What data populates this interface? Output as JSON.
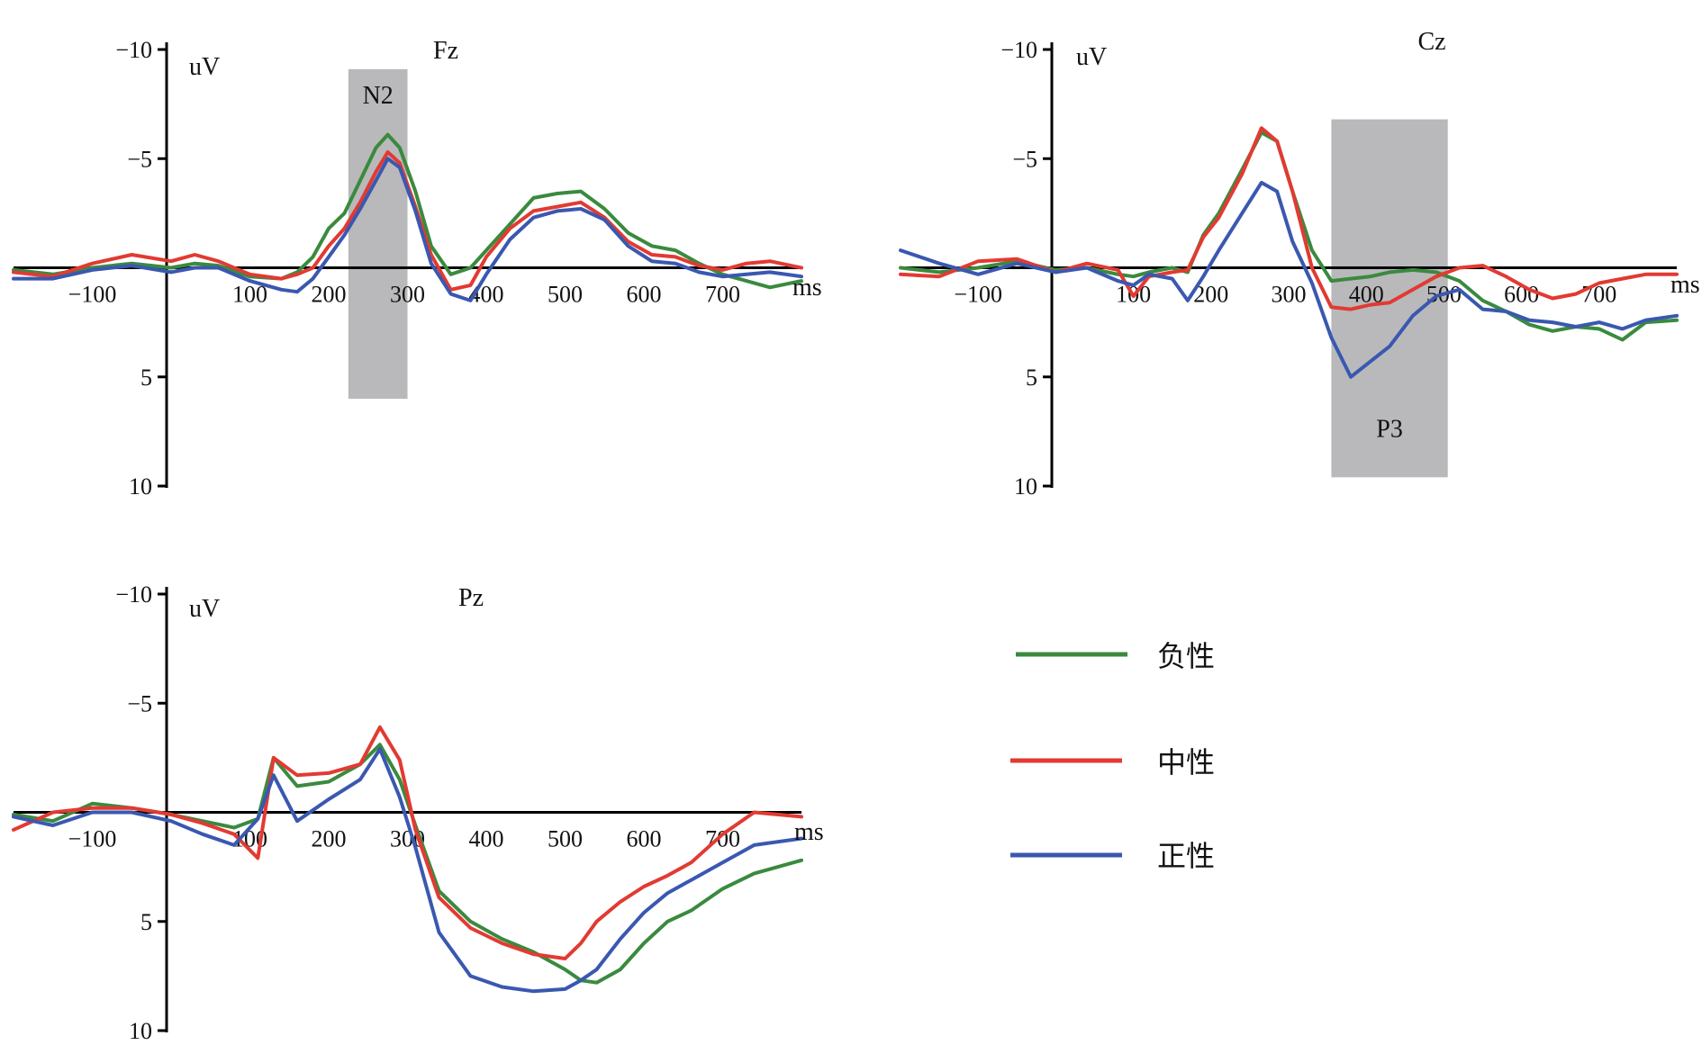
{
  "legend": {
    "items": [
      {
        "label": "负性",
        "color": "#3a8a3e"
      },
      {
        "label": "中性",
        "color": "#e23a32"
      },
      {
        "label": "正性",
        "color": "#3a58b0"
      }
    ]
  },
  "chart_data": [
    {
      "type": "line",
      "title": "Fz",
      "ylabel": "uV",
      "xlabel": "ms",
      "xlim": [
        -200,
        800
      ],
      "ylim": [
        -10,
        10
      ],
      "y_inverted": true,
      "x_ticks": [
        "−100",
        "100",
        "200",
        "300",
        "400",
        "500",
        "600",
        "700"
      ],
      "x_tick_values": [
        -100,
        100,
        200,
        300,
        400,
        500,
        600,
        700
      ],
      "y_ticks": [
        "−10",
        "−5",
        "5",
        "10"
      ],
      "y_tick_values": [
        -10,
        -5,
        5,
        10
      ],
      "shaded_window": {
        "label": "N2",
        "x_start": 225,
        "x_end": 300,
        "y_top": -9.1,
        "y_bottom": 6.0
      },
      "series": [
        {
          "name": "负性",
          "color": "#3a8a3e",
          "x": [
            -200,
            -150,
            -100,
            -50,
            0,
            30,
            60,
            100,
            140,
            160,
            180,
            200,
            220,
            240,
            260,
            275,
            290,
            310,
            330,
            355,
            380,
            400,
            430,
            460,
            490,
            520,
            550,
            580,
            610,
            640,
            670,
            700,
            730,
            760,
            800
          ],
          "y": [
            0.1,
            0.3,
            0,
            -0.2,
            0,
            -0.2,
            -0.1,
            0.4,
            0.5,
            0.2,
            -0.5,
            -1.8,
            -2.5,
            -4.0,
            -5.5,
            -6.1,
            -5.5,
            -3.5,
            -1.0,
            0.3,
            0,
            -0.8,
            -2.0,
            -3.2,
            -3.4,
            -3.5,
            -2.7,
            -1.6,
            -1.0,
            -0.8,
            -0.2,
            0.3,
            0.6,
            0.9,
            0.6
          ]
        },
        {
          "name": "中性",
          "color": "#e23a32",
          "x": [
            -200,
            -150,
            -100,
            -50,
            0,
            30,
            60,
            100,
            140,
            160,
            180,
            200,
            220,
            240,
            260,
            275,
            290,
            310,
            330,
            355,
            380,
            400,
            430,
            460,
            490,
            520,
            550,
            580,
            610,
            640,
            670,
            700,
            730,
            760,
            800
          ],
          "y": [
            0.2,
            0.4,
            -0.2,
            -0.6,
            -0.3,
            -0.6,
            -0.3,
            0.3,
            0.5,
            0.3,
            0,
            -1.0,
            -1.8,
            -3.0,
            -4.4,
            -5.3,
            -4.8,
            -2.8,
            -0.6,
            1.0,
            0.8,
            -0.5,
            -1.8,
            -2.6,
            -2.8,
            -3.0,
            -2.3,
            -1.2,
            -0.6,
            -0.5,
            -0.1,
            0.1,
            -0.2,
            -0.3,
            0
          ]
        },
        {
          "name": "正性",
          "color": "#3a58b0",
          "x": [
            -200,
            -150,
            -100,
            -50,
            0,
            30,
            60,
            100,
            140,
            160,
            180,
            200,
            220,
            240,
            260,
            275,
            290,
            310,
            330,
            355,
            380,
            400,
            430,
            460,
            490,
            520,
            550,
            580,
            610,
            640,
            670,
            700,
            730,
            760,
            800
          ],
          "y": [
            0.5,
            0.5,
            0.1,
            -0.1,
            0.2,
            0,
            0,
            0.6,
            1.0,
            1.1,
            0.5,
            -0.5,
            -1.5,
            -2.7,
            -4.0,
            -5.0,
            -4.6,
            -2.6,
            -0.2,
            1.2,
            1.5,
            0.3,
            -1.3,
            -2.3,
            -2.6,
            -2.7,
            -2.2,
            -1.0,
            -0.3,
            -0.2,
            0.2,
            0.4,
            0.3,
            0.2,
            0.4
          ]
        }
      ]
    },
    {
      "type": "line",
      "title": "Cz",
      "ylabel": "uV",
      "xlabel": "ms",
      "xlim": [
        -200,
        800
      ],
      "ylim": [
        -10,
        10
      ],
      "y_inverted": true,
      "x_ticks": [
        "−100",
        "100",
        "200",
        "300",
        "400",
        "500",
        "600",
        "700"
      ],
      "x_tick_values": [
        -100,
        100,
        200,
        300,
        400,
        500,
        600,
        700
      ],
      "y_ticks": [
        "−10",
        "−5",
        "5",
        "10"
      ],
      "y_tick_values": [
        -10,
        -5,
        5,
        10
      ],
      "shaded_window": {
        "label": "P3",
        "x_start": 355,
        "x_end": 505,
        "y_top": -6.8,
        "y_bottom": 9.6
      },
      "series": [
        {
          "name": "负性",
          "color": "#3a8a3e",
          "x": [
            -200,
            -150,
            -100,
            -50,
            0,
            40,
            80,
            100,
            120,
            150,
            170,
            190,
            210,
            240,
            265,
            285,
            305,
            330,
            355,
            380,
            405,
            430,
            460,
            490,
            520,
            550,
            580,
            610,
            640,
            670,
            700,
            730,
            760,
            800
          ],
          "y": [
            0,
            0.2,
            0,
            -0.3,
            0.1,
            0,
            0.3,
            0.4,
            0.2,
            0,
            0.2,
            -1.5,
            -2.5,
            -4.5,
            -6.2,
            -5.8,
            -3.5,
            -0.8,
            0.6,
            0.5,
            0.4,
            0.2,
            0.1,
            0.2,
            0.6,
            1.5,
            2.0,
            2.6,
            2.9,
            2.7,
            2.8,
            3.3,
            2.5,
            2.4
          ]
        },
        {
          "name": "中性",
          "color": "#e23a32",
          "x": [
            -200,
            -150,
            -100,
            -50,
            0,
            40,
            80,
            100,
            120,
            150,
            170,
            190,
            210,
            240,
            265,
            285,
            305,
            330,
            355,
            380,
            405,
            430,
            460,
            490,
            520,
            550,
            580,
            610,
            640,
            670,
            700,
            730,
            760,
            800
          ],
          "y": [
            0.3,
            0.4,
            -0.3,
            -0.4,
            0.2,
            -0.2,
            0.1,
            1.3,
            0.4,
            0.2,
            0.1,
            -1.4,
            -2.3,
            -4.3,
            -6.4,
            -5.8,
            -3.5,
            0,
            1.8,
            1.9,
            1.7,
            1.6,
            1.0,
            0.4,
            0,
            -0.1,
            0.4,
            1.0,
            1.4,
            1.2,
            0.7,
            0.5,
            0.3,
            0.3
          ]
        },
        {
          "name": "正性",
          "color": "#3a58b0",
          "x": [
            -200,
            -150,
            -100,
            -50,
            0,
            40,
            80,
            100,
            120,
            150,
            170,
            190,
            210,
            240,
            265,
            285,
            305,
            330,
            355,
            380,
            405,
            430,
            460,
            490,
            520,
            550,
            580,
            610,
            640,
            670,
            700,
            730,
            760,
            800
          ],
          "y": [
            -0.8,
            -0.2,
            0.3,
            -0.2,
            0.2,
            0,
            0.6,
            0.8,
            0.3,
            0.5,
            1.5,
            0.4,
            -0.8,
            -2.5,
            -3.9,
            -3.5,
            -1.2,
            0.7,
            3.2,
            5.0,
            4.3,
            3.6,
            2.2,
            1.3,
            1.0,
            1.9,
            2.0,
            2.4,
            2.5,
            2.7,
            2.5,
            2.8,
            2.4,
            2.2
          ]
        }
      ]
    },
    {
      "type": "line",
      "title": "Pz",
      "ylabel": "uV",
      "xlabel": "ms",
      "xlim": [
        -200,
        800
      ],
      "ylim": [
        -10,
        10
      ],
      "y_inverted": true,
      "x_ticks": [
        "−100",
        "100",
        "200",
        "300",
        "400",
        "500",
        "600",
        "700"
      ],
      "x_tick_values": [
        -100,
        100,
        200,
        300,
        400,
        500,
        600,
        700
      ],
      "y_ticks": [
        "−10",
        "−5",
        "5",
        "10"
      ],
      "y_tick_values": [
        -10,
        -5,
        5,
        10
      ],
      "series": [
        {
          "name": "负性",
          "color": "#3a8a3e",
          "x": [
            -200,
            -150,
            -100,
            -50,
            0,
            40,
            80,
            110,
            130,
            160,
            200,
            240,
            265,
            290,
            310,
            340,
            380,
            420,
            460,
            500,
            520,
            540,
            570,
            600,
            630,
            660,
            700,
            740,
            800
          ],
          "y": [
            0.1,
            0.4,
            -0.4,
            -0.2,
            0.1,
            0.4,
            0.7,
            0.3,
            -2.5,
            -1.2,
            -1.4,
            -2.2,
            -3.1,
            -1.5,
            0.6,
            3.6,
            5.0,
            5.8,
            6.4,
            7.2,
            7.7,
            7.8,
            7.2,
            6.0,
            5.0,
            4.5,
            3.5,
            2.8,
            2.2
          ]
        },
        {
          "name": "中性",
          "color": "#e23a32",
          "x": [
            -200,
            -150,
            -100,
            -50,
            0,
            40,
            80,
            110,
            130,
            160,
            200,
            240,
            265,
            290,
            310,
            340,
            380,
            420,
            460,
            500,
            520,
            540,
            570,
            600,
            630,
            660,
            700,
            740,
            800
          ],
          "y": [
            0.8,
            0,
            -0.2,
            -0.2,
            0.1,
            0.5,
            1.0,
            2.1,
            -2.5,
            -1.7,
            -1.8,
            -2.2,
            -3.9,
            -2.4,
            0.8,
            3.9,
            5.3,
            6.0,
            6.5,
            6.7,
            6.0,
            5.0,
            4.1,
            3.4,
            2.9,
            2.3,
            1.0,
            0,
            0.2
          ]
        },
        {
          "name": "正性",
          "color": "#3a58b0",
          "x": [
            -200,
            -150,
            -100,
            -50,
            0,
            40,
            80,
            110,
            130,
            160,
            200,
            240,
            265,
            290,
            310,
            340,
            380,
            420,
            460,
            500,
            520,
            540,
            570,
            600,
            630,
            660,
            700,
            740,
            800
          ],
          "y": [
            0.2,
            0.6,
            0,
            0,
            0.4,
            1.0,
            1.5,
            0.3,
            -1.7,
            0.4,
            -0.6,
            -1.5,
            -2.9,
            -0.7,
            1.6,
            5.5,
            7.5,
            8.0,
            8.2,
            8.1,
            7.7,
            7.2,
            5.8,
            4.6,
            3.7,
            3.1,
            2.3,
            1.5,
            1.2
          ]
        }
      ]
    }
  ]
}
